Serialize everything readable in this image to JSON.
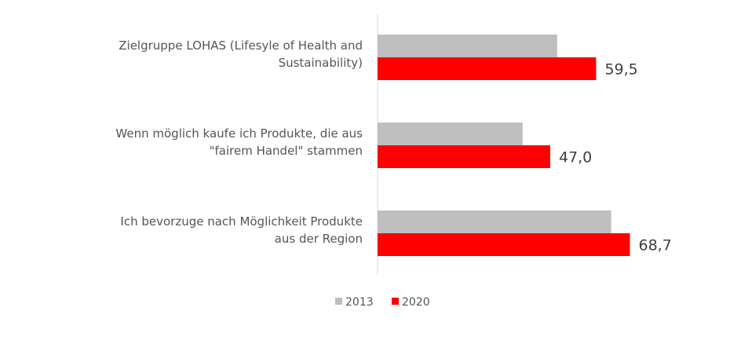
{
  "chart_data": {
    "type": "bar",
    "orientation": "horizontal",
    "categories": [
      [
        "Zielgruppe LOHAS (Lifesyle of Health and",
        "Sustainability)"
      ],
      [
        "Wenn möglich kaufe ich Produkte, die aus",
        "\"fairem Handel\" stammen"
      ],
      [
        "Ich bevorzuge nach Möglichkeit Produkte",
        "aus der Region"
      ]
    ],
    "series": [
      {
        "name": "2013",
        "color": "#bfbfbf",
        "values": [
          48.9,
          39.5,
          63.6
        ],
        "labels": [
          "",
          "",
          ""
        ]
      },
      {
        "name": "2020",
        "color": "#ff0000",
        "values": [
          59.5,
          47.0,
          68.7
        ],
        "labels": [
          "59,5",
          "47,0",
          "68,7"
        ]
      }
    ],
    "xlim": [
      0,
      100
    ],
    "legend": "bottom",
    "grid": false
  }
}
